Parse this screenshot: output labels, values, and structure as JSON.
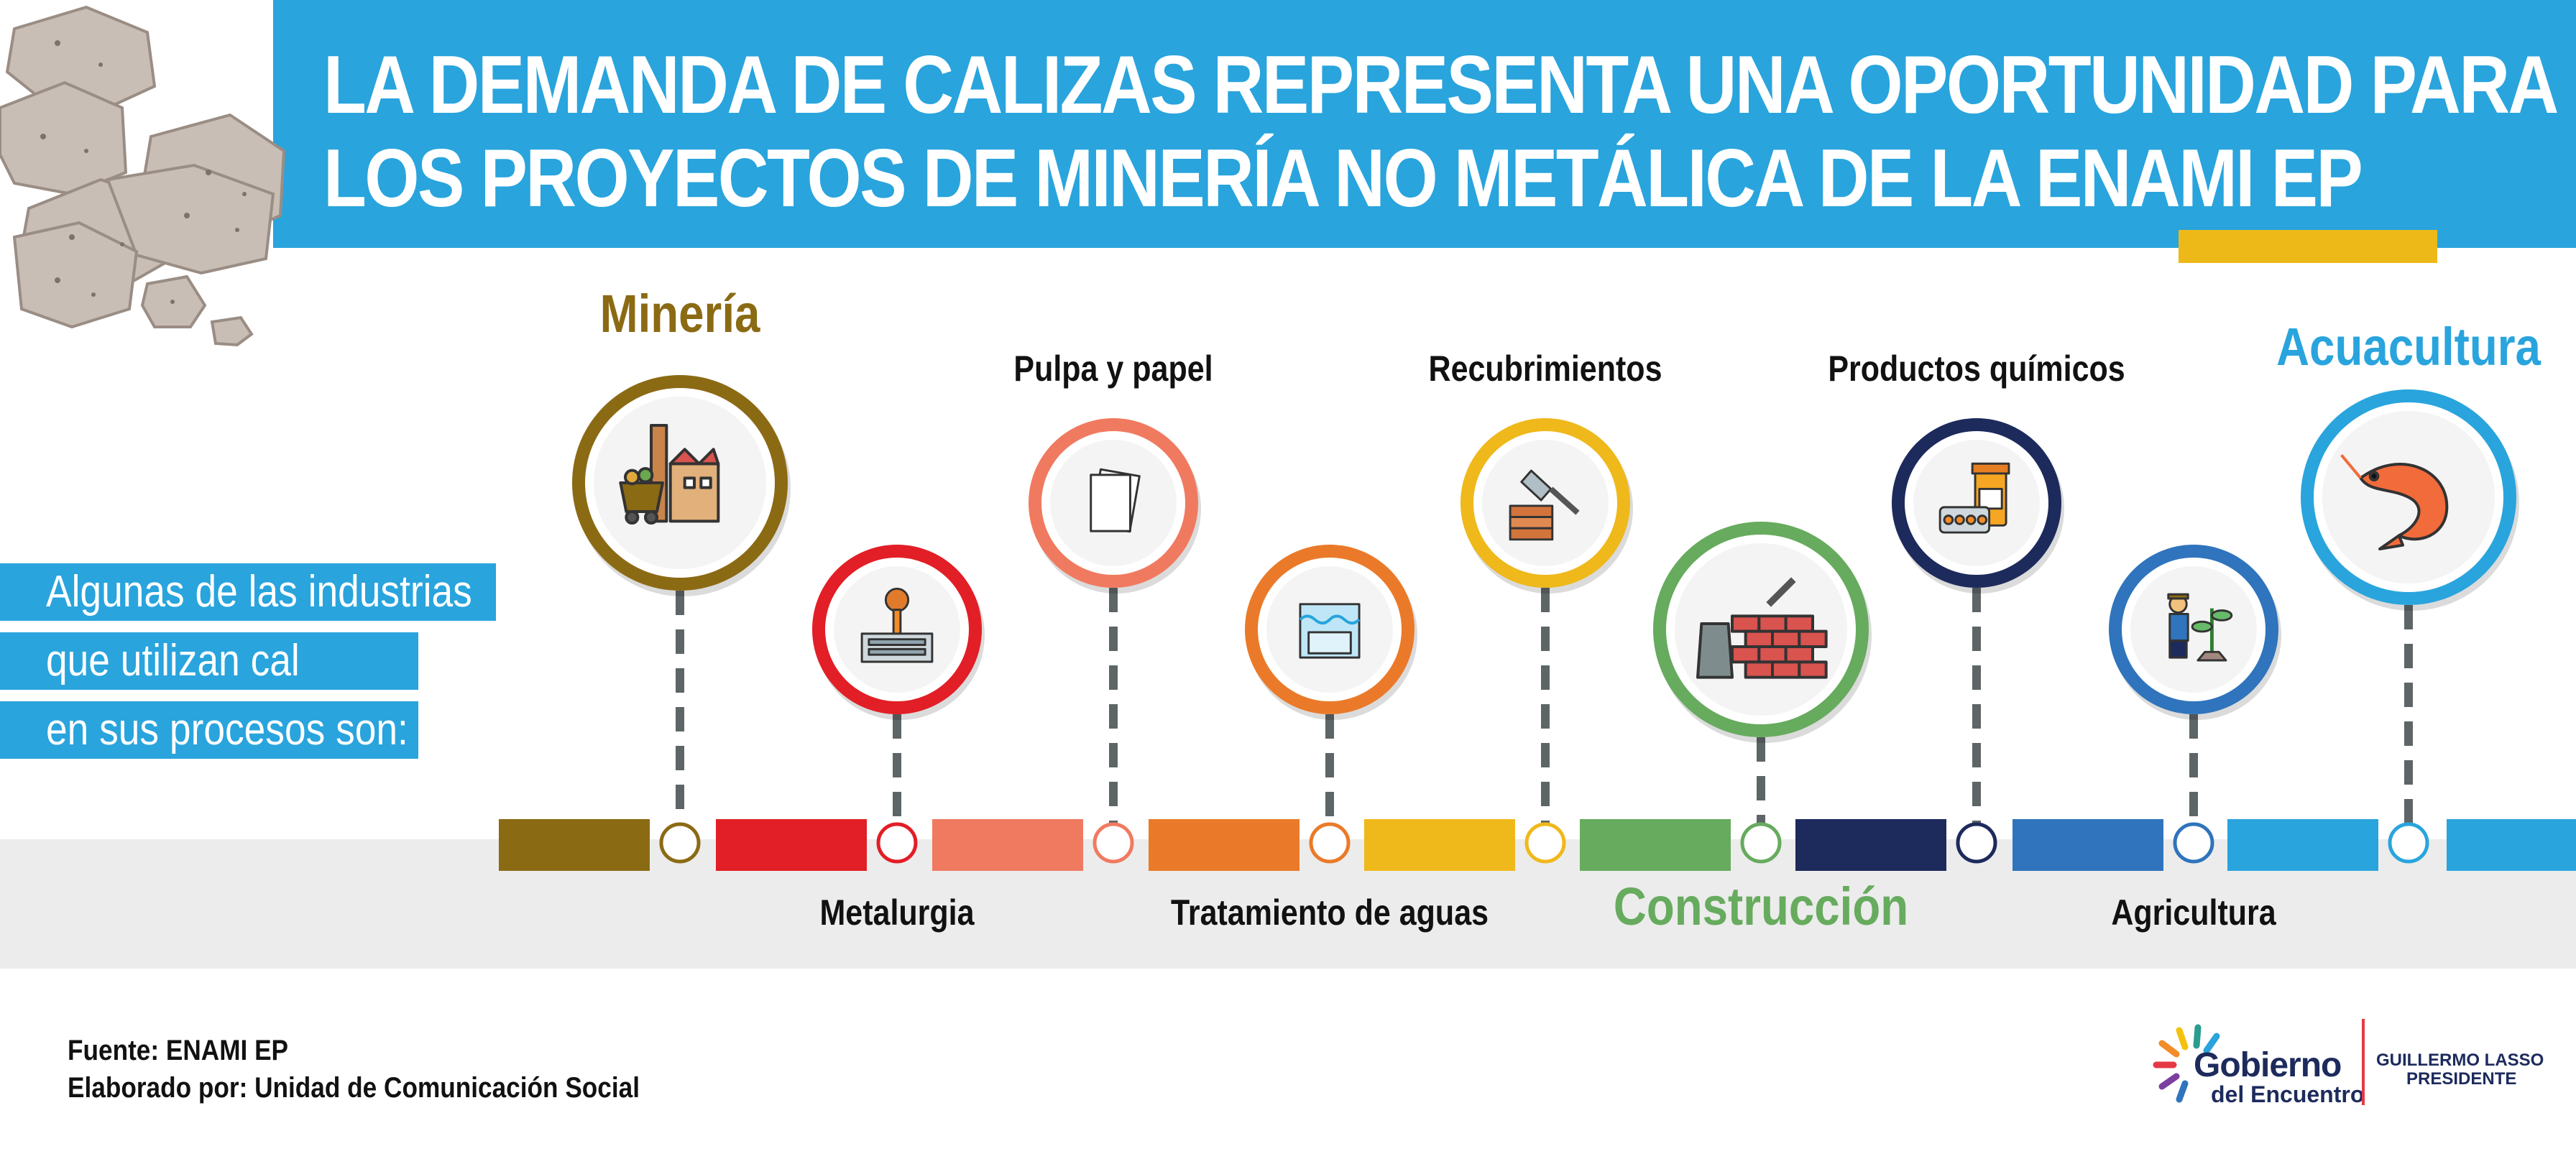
{
  "title": {
    "line1": "LA DEMANDA DE CALIZAS REPRESENTA UNA OPORTUNIDAD PARA",
    "line2": "LOS PROYECTOS DE MINERÍA NO METÁLICA DE LA ENAMI EP"
  },
  "intro": {
    "line1": "Algunas de las industrias",
    "line2": "que utilizan cal",
    "line3": "en sus procesos son:"
  },
  "industries": [
    {
      "name": "Minería",
      "color": "#8b6a14",
      "icon": "mining-cart-factory-icon",
      "position": "top",
      "emphasis": true
    },
    {
      "name": "Metalurgia",
      "color": "#e21e26",
      "icon": "molten-metal-pour-icon",
      "position": "bottom",
      "emphasis": false
    },
    {
      "name": "Pulpa y papel",
      "color": "#f07a60",
      "icon": "paper-sheets-icon",
      "position": "top",
      "emphasis": false
    },
    {
      "name": "Tratamiento de aguas",
      "color": "#ea7a29",
      "icon": "water-tank-icon",
      "position": "bottom",
      "emphasis": false
    },
    {
      "name": "Recubrimientos",
      "color": "#efb81b",
      "icon": "trowel-wall-icon",
      "position": "top",
      "emphasis": false
    },
    {
      "name": "Construcción",
      "color": "#67ab5e",
      "icon": "brick-wall-icon",
      "position": "bottom",
      "emphasis": true
    },
    {
      "name": "Productos químicos",
      "color": "#1d2a5c",
      "icon": "chemical-pills-icon",
      "position": "top",
      "emphasis": false
    },
    {
      "name": "Agricultura",
      "color": "#2f74bc",
      "icon": "farmer-plant-icon",
      "position": "bottom",
      "emphasis": false
    },
    {
      "name": "Acuacultura",
      "color": "#29a4dd",
      "icon": "shrimp-icon",
      "position": "top",
      "emphasis": true
    }
  ],
  "source": {
    "line1": "Fuente: ENAMI EP",
    "line2": "Elaborado por: Unidad de Comunicación Social"
  },
  "logo": {
    "name": "Gobierno",
    "subtitle": "del Encuentro",
    "president_name": "GUILLERMO LASSO",
    "president_title": "PRESIDENTE"
  }
}
